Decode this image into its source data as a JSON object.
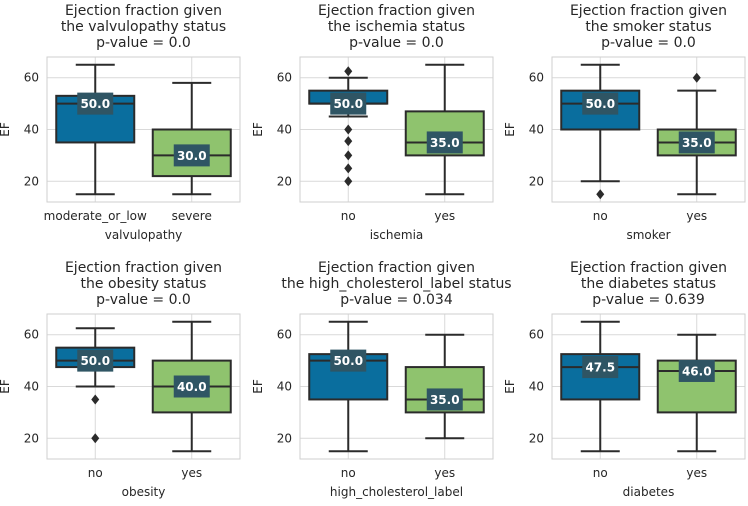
{
  "chart_data": [
    {
      "type": "box",
      "title": [
        "Ejection fraction given",
        "the valvulopathy status",
        "p-value = 0.0"
      ],
      "xlabel": "valvulopathy",
      "ylabel": "EF",
      "ylim": [
        12,
        68
      ],
      "yticks": [
        20,
        40,
        60
      ],
      "grid": true,
      "categories": [
        "moderate_or_low",
        "severe"
      ],
      "boxes": [
        {
          "category": "moderate_or_low",
          "whisker_low": 15,
          "q1": 35,
          "median": 50,
          "q3": 53,
          "whisker_high": 65,
          "outliers": [],
          "median_label": "50.0",
          "color": "#0a6e9e"
        },
        {
          "category": "severe",
          "whisker_low": 15,
          "q1": 22,
          "median": 30,
          "q3": 40,
          "whisker_high": 58,
          "outliers": [],
          "median_label": "30.0",
          "color": "#8fc36e"
        }
      ]
    },
    {
      "type": "box",
      "title": [
        "Ejection fraction given",
        "the ischemia status",
        "p-value = 0.0"
      ],
      "xlabel": "ischemia",
      "ylabel": "EF",
      "ylim": [
        12,
        68
      ],
      "yticks": [
        20,
        40,
        60
      ],
      "grid": true,
      "categories": [
        "no",
        "yes"
      ],
      "boxes": [
        {
          "category": "no",
          "whisker_low": 45,
          "q1": 50,
          "median": 50,
          "q3": 55,
          "whisker_high": 60,
          "outliers": [
            62.5,
            40,
            35.5,
            30,
            25,
            20
          ],
          "median_label": "50.0",
          "color": "#0a6e9e"
        },
        {
          "category": "yes",
          "whisker_low": 15,
          "q1": 30,
          "median": 35,
          "q3": 47,
          "whisker_high": 65,
          "outliers": [],
          "median_label": "35.0",
          "color": "#8fc36e"
        }
      ]
    },
    {
      "type": "box",
      "title": [
        "Ejection fraction given",
        "the smoker status",
        "p-value = 0.0"
      ],
      "xlabel": "smoker",
      "ylabel": "EF",
      "ylim": [
        12,
        68
      ],
      "yticks": [
        20,
        40,
        60
      ],
      "grid": true,
      "categories": [
        "no",
        "yes"
      ],
      "boxes": [
        {
          "category": "no",
          "whisker_low": 20,
          "q1": 40,
          "median": 50,
          "q3": 55,
          "whisker_high": 65,
          "outliers": [
            15
          ],
          "median_label": "50.0",
          "color": "#0a6e9e"
        },
        {
          "category": "yes",
          "whisker_low": 15,
          "q1": 30,
          "median": 35,
          "q3": 40,
          "whisker_high": 55,
          "outliers": [
            60
          ],
          "median_label": "35.0",
          "color": "#8fc36e"
        }
      ]
    },
    {
      "type": "box",
      "title": [
        "Ejection fraction given",
        "the obesity status",
        "p-value = 0.0"
      ],
      "xlabel": "obesity",
      "ylabel": "EF",
      "ylim": [
        12,
        68
      ],
      "yticks": [
        20,
        40,
        60
      ],
      "grid": true,
      "categories": [
        "no",
        "yes"
      ],
      "boxes": [
        {
          "category": "no",
          "whisker_low": 40,
          "q1": 47.5,
          "median": 50,
          "q3": 55,
          "whisker_high": 62.5,
          "outliers": [
            35,
            20
          ],
          "median_label": "50.0",
          "color": "#0a6e9e"
        },
        {
          "category": "yes",
          "whisker_low": 15,
          "q1": 30,
          "median": 40,
          "q3": 50,
          "whisker_high": 65,
          "outliers": [],
          "median_label": "40.0",
          "color": "#8fc36e"
        }
      ]
    },
    {
      "type": "box",
      "title": [
        "Ejection fraction given",
        "the high_cholesterol_label status",
        "p-value = 0.034"
      ],
      "xlabel": "high_cholesterol_label",
      "ylabel": "EF",
      "ylim": [
        12,
        68
      ],
      "yticks": [
        20,
        40,
        60
      ],
      "grid": true,
      "categories": [
        "no",
        "yes"
      ],
      "boxes": [
        {
          "category": "no",
          "whisker_low": 15,
          "q1": 35,
          "median": 50,
          "q3": 52.5,
          "whisker_high": 65,
          "outliers": [],
          "median_label": "50.0",
          "color": "#0a6e9e"
        },
        {
          "category": "yes",
          "whisker_low": 20,
          "q1": 30,
          "median": 35,
          "q3": 47.5,
          "whisker_high": 60,
          "outliers": [],
          "median_label": "35.0",
          "color": "#8fc36e"
        }
      ]
    },
    {
      "type": "box",
      "title": [
        "Ejection fraction given",
        "the diabetes status",
        "p-value = 0.639"
      ],
      "xlabel": "diabetes",
      "ylabel": "EF",
      "ylim": [
        12,
        68
      ],
      "yticks": [
        20,
        40,
        60
      ],
      "grid": true,
      "categories": [
        "no",
        "yes"
      ],
      "boxes": [
        {
          "category": "no",
          "whisker_low": 15,
          "q1": 35,
          "median": 47.5,
          "q3": 52.5,
          "whisker_high": 65,
          "outliers": [],
          "median_label": "47.5",
          "color": "#0a6e9e"
        },
        {
          "category": "yes",
          "whisker_low": 15,
          "q1": 30,
          "median": 46,
          "q3": 50,
          "whisker_high": 60,
          "outliers": [],
          "median_label": "46.0",
          "color": "#8fc36e"
        }
      ]
    }
  ],
  "style": {
    "grid_color": "#d9d9d9",
    "spine_color": "#cfcfcf",
    "line_color": "#2b2b2b",
    "label_box_color": "#2f5564"
  }
}
